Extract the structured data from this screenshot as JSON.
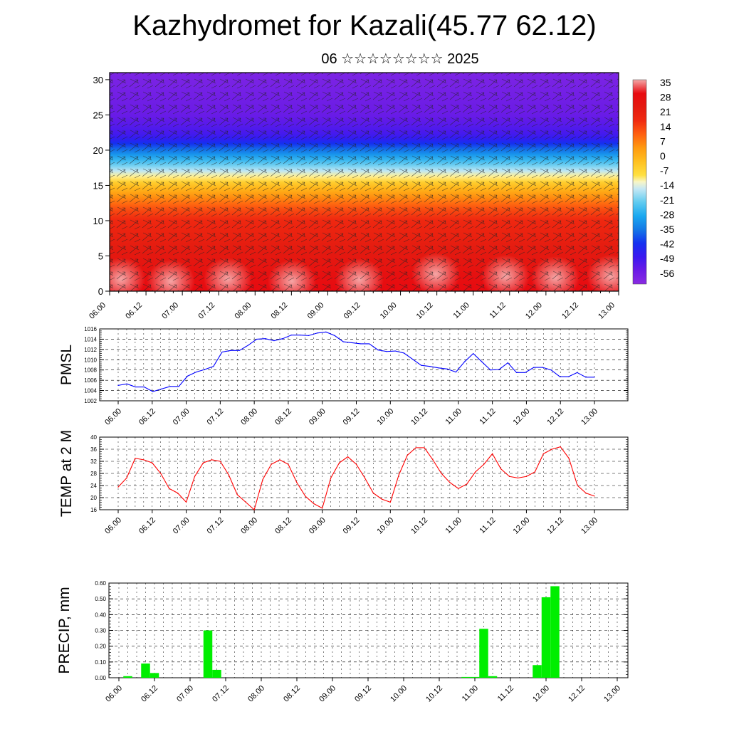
{
  "title": "Kazhydromet for Kazali(45.77 62.12)",
  "subtitle": "06 ☆☆☆☆☆☆☆☆ 2025",
  "x_ticks": [
    "06.00",
    "06.12",
    "07.00",
    "07.12",
    "08.00",
    "08.12",
    "09.00",
    "09.12",
    "10.00",
    "10.12",
    "11.00",
    "11.12",
    "12.00",
    "12.12",
    "13.00"
  ],
  "colors": {
    "pmsl": "#0000ff",
    "temp": "#ff0000",
    "precip": "#00ee00"
  },
  "chart_data": [
    {
      "type": "heatmap",
      "name_ref": "temperature-wind cross-section",
      "x_ticks": [
        "06.00",
        "06.12",
        "07.00",
        "07.12",
        "08.00",
        "08.12",
        "09.00",
        "09.12",
        "10.00",
        "10.12",
        "11.00",
        "11.12",
        "12.00",
        "12.12",
        "13.00"
      ],
      "ylim": [
        0,
        31
      ],
      "y_ticks": [
        0,
        5,
        10,
        15,
        20,
        25,
        30
      ],
      "colorbar_labels": [
        "35",
        "28",
        "21",
        "14",
        "7",
        "0",
        "-7",
        "-14",
        "-21",
        "-28",
        "-35",
        "-42",
        "-49",
        "-56"
      ],
      "colorbar_range": [
        -63,
        42
      ],
      "temperature_by_height": [
        [
          0,
          35
        ],
        [
          5,
          29
        ],
        [
          10,
          22
        ],
        [
          12,
          15
        ],
        [
          15,
          0
        ],
        [
          17,
          -14
        ],
        [
          20,
          -35
        ],
        [
          22,
          -50
        ],
        [
          25,
          -56
        ],
        [
          28,
          -58
        ],
        [
          31,
          -60
        ]
      ],
      "overlay": "wind vectors"
    },
    {
      "type": "line",
      "ylabel": "PMSL",
      "ylim": [
        1002,
        1016
      ],
      "y_ticks": [
        "1002",
        "1004",
        "1006",
        "1008",
        "1010",
        "1012",
        "1014",
        "1016"
      ],
      "x_ticks": [
        "06.00",
        "06.12",
        "07.00",
        "07.12",
        "08.00",
        "08.12",
        "09.00",
        "09.12",
        "10.00",
        "10.12",
        "11.00",
        "11.12",
        "12.00",
        "12.12",
        "13.00"
      ],
      "grid": true,
      "values": [
        1005.0,
        1005.3,
        1004.7,
        1004.7,
        1003.8,
        1004.3,
        1004.8,
        1004.8,
        1006.8,
        1007.6,
        1008.1,
        1008.7,
        1011.5,
        1011.8,
        1011.8,
        1012.8,
        1014.0,
        1014.1,
        1013.7,
        1014.1,
        1014.8,
        1014.8,
        1014.7,
        1015.2,
        1015.4,
        1014.7,
        1013.5,
        1013.3,
        1013.1,
        1013.1,
        1011.9,
        1011.6,
        1011.7,
        1011.3,
        1010.1,
        1008.9,
        1008.7,
        1008.4,
        1008.2,
        1007.6,
        1009.6,
        1011.2,
        1009.6,
        1008.0,
        1008.1,
        1009.4,
        1007.5,
        1007.5,
        1008.5,
        1008.5,
        1008.0,
        1006.7,
        1006.7,
        1007.5,
        1006.6,
        1006.6
      ]
    },
    {
      "type": "line",
      "ylabel": "TEMP at 2 M",
      "ylim": [
        16,
        40
      ],
      "y_ticks": [
        "16",
        "20",
        "24",
        "28",
        "32",
        "36",
        "40"
      ],
      "x_ticks": [
        "06.00",
        "06.12",
        "07.00",
        "07.12",
        "08.00",
        "08.12",
        "09.00",
        "09.12",
        "10.00",
        "10.12",
        "11.00",
        "11.12",
        "12.00",
        "12.12",
        "13.00"
      ],
      "grid": true,
      "values": [
        23.5,
        26.5,
        33.0,
        32.5,
        31.5,
        28.0,
        23.0,
        21.5,
        18.5,
        27.0,
        31.5,
        32.5,
        32.0,
        27.5,
        21.0,
        18.5,
        16.0,
        26.0,
        31.0,
        32.5,
        31.0,
        25.0,
        20.5,
        18.0,
        16.5,
        26.5,
        31.5,
        33.5,
        31.0,
        26.5,
        21.5,
        19.5,
        18.5,
        27.5,
        34.0,
        36.5,
        36.5,
        32.5,
        28.0,
        25.0,
        23.0,
        24.5,
        28.5,
        31.0,
        34.5,
        29.5,
        27.0,
        26.5,
        27.0,
        28.5,
        34.5,
        36.0,
        36.8,
        33.0,
        24.0,
        21.5,
        20.5
      ]
    },
    {
      "type": "bar",
      "ylabel": "PRECIP, mm",
      "ylim": [
        0,
        0.6
      ],
      "y_ticks": [
        "0.00",
        "0.10",
        "0.20",
        "0.30",
        "0.40",
        "0.50",
        "0.60"
      ],
      "x_ticks": [
        "06.00",
        "06.12",
        "07.00",
        "07.12",
        "08.00",
        "08.12",
        "09.00",
        "09.12",
        "10.00",
        "10.12",
        "11.00",
        "11.12",
        "12.00",
        "12.12",
        "13.00"
      ],
      "grid": true,
      "bar_hours": [
        3,
        9,
        12,
        30,
        33,
        117,
        120,
        123,
        126,
        141,
        144,
        147
      ],
      "values": [
        0.01,
        0.09,
        0.03,
        0.3,
        0.05,
        0.005,
        0.005,
        0.31,
        0.01,
        0.08,
        0.51,
        0.58
      ]
    }
  ]
}
